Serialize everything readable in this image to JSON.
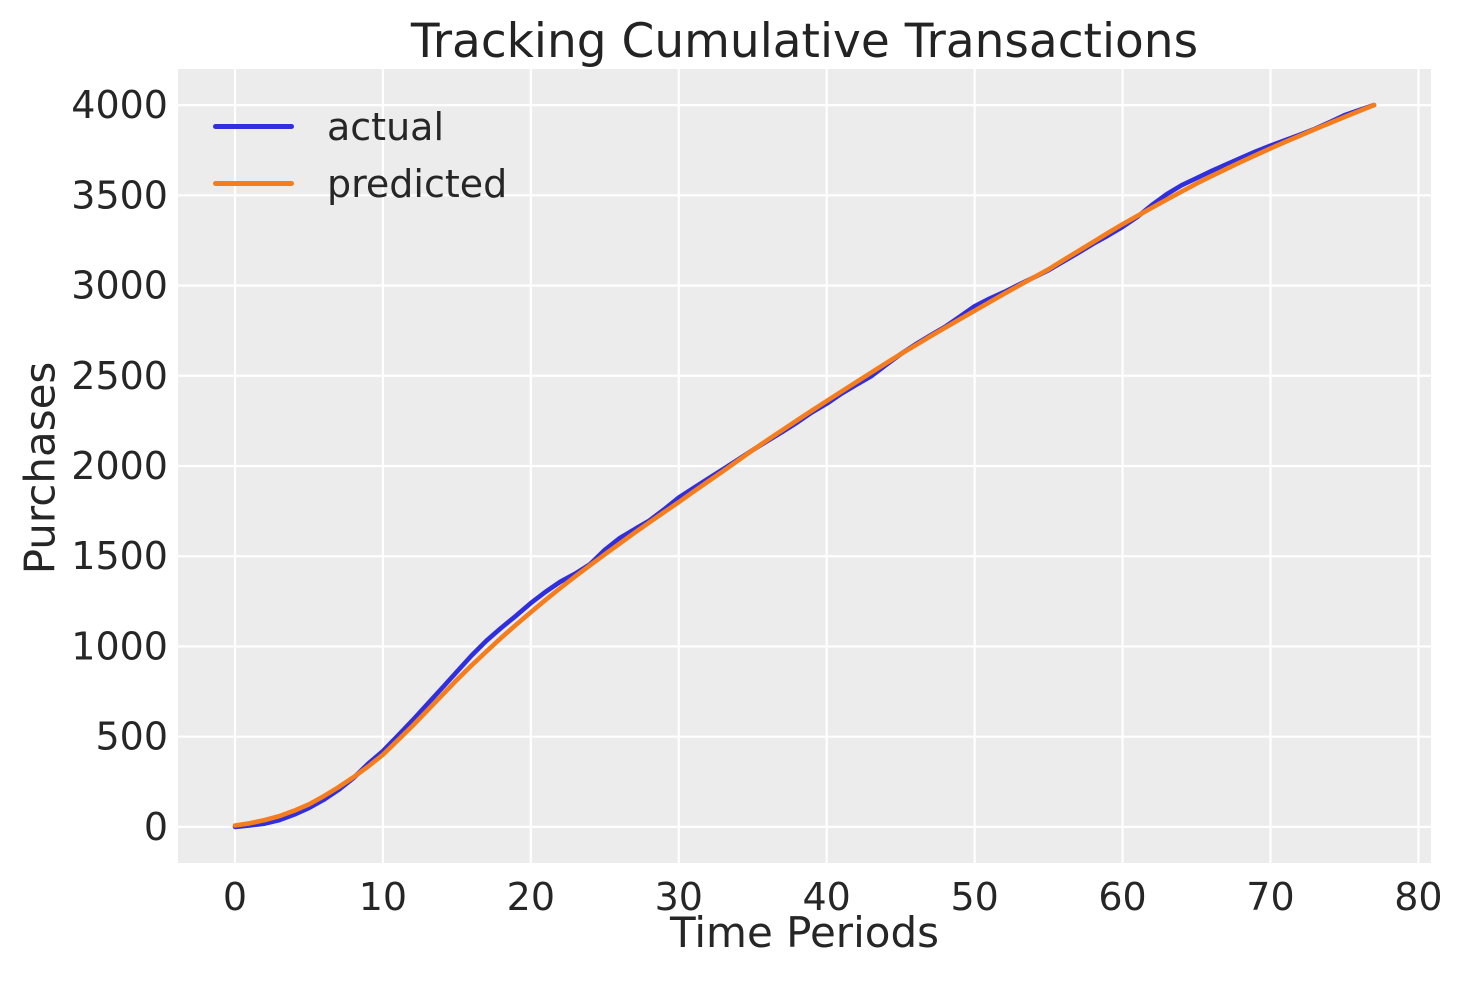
{
  "figure": {
    "title": "Tracking Cumulative Transactions",
    "xlabel": "Time Periods",
    "ylabel": "Purchases"
  },
  "legend": {
    "items": [
      {
        "label": "actual",
        "color": "#2f2fdf"
      },
      {
        "label": "predicted",
        "color": "#f67d1b"
      }
    ]
  },
  "colors": {
    "plot_background": "#ececec",
    "gridline": "#ffffff",
    "text": "#262626",
    "actual_line": "#2f2fdf",
    "predicted_line": "#f67d1b"
  },
  "chart_data": {
    "type": "line",
    "title": "Tracking Cumulative Transactions",
    "xlabel": "Time Periods",
    "ylabel": "Purchases",
    "grid": true,
    "legend_position": "upper left",
    "xlim": [
      -3.85,
      80.85
    ],
    "ylim": [
      -200,
      4200
    ],
    "xticks": [
      0,
      10,
      20,
      30,
      40,
      50,
      60,
      70,
      80
    ],
    "yticks": [
      0,
      500,
      1000,
      1500,
      2000,
      2500,
      3000,
      3500,
      4000
    ],
    "x": [
      0,
      1,
      2,
      3,
      4,
      5,
      6,
      7,
      8,
      9,
      10,
      11,
      12,
      13,
      14,
      15,
      16,
      17,
      18,
      19,
      20,
      21,
      22,
      23,
      24,
      25,
      26,
      27,
      28,
      29,
      30,
      31,
      32,
      33,
      34,
      35,
      36,
      37,
      38,
      39,
      40,
      41,
      42,
      43,
      44,
      45,
      46,
      47,
      48,
      49,
      50,
      51,
      52,
      53,
      54,
      55,
      56,
      57,
      58,
      59,
      60,
      61,
      62,
      63,
      64,
      65,
      66,
      67,
      68,
      69,
      70,
      71,
      72,
      73,
      74,
      75,
      76,
      77
    ],
    "series": [
      {
        "name": "actual",
        "color": "#2f2fdf",
        "values": [
          0,
          8,
          18,
          38,
          68,
          105,
          150,
          205,
          270,
          350,
          420,
          505,
          590,
          680,
          770,
          860,
          950,
          1032,
          1103,
          1170,
          1240,
          1303,
          1359,
          1403,
          1455,
          1535,
          1600,
          1649,
          1697,
          1759,
          1825,
          1878,
          1930,
          1982,
          2035,
          2088,
          2139,
          2189,
          2241,
          2297,
          2345,
          2401,
          2450,
          2497,
          2559,
          2620,
          2674,
          2723,
          2771,
          2828,
          2885,
          2927,
          2964,
          3005,
          3045,
          3085,
          3133,
          3181,
          3231,
          3276,
          3325,
          3381,
          3447,
          3507,
          3556,
          3595,
          3634,
          3671,
          3707,
          3743,
          3775,
          3806,
          3836,
          3868,
          3905,
          3944,
          3972,
          4000
        ]
      },
      {
        "name": "predicted",
        "color": "#f67d1b",
        "values": [
          8,
          20,
          38,
          60,
          90,
          125,
          170,
          220,
          275,
          335,
          400,
          480,
          560,
          645,
          730,
          815,
          895,
          972,
          1048,
          1120,
          1190,
          1258,
          1324,
          1388,
          1450,
          1510,
          1570,
          1629,
          1687,
          1744,
          1800,
          1858,
          1915,
          1972,
          2030,
          2088,
          2144,
          2199,
          2253,
          2307,
          2360,
          2413,
          2465,
          2517,
          2569,
          2620,
          2669,
          2718,
          2766,
          2813,
          2860,
          2907,
          2954,
          3000,
          3045,
          3090,
          3141,
          3191,
          3241,
          3291,
          3340,
          3386,
          3432,
          3477,
          3521,
          3565,
          3606,
          3646,
          3685,
          3723,
          3760,
          3796,
          3831,
          3866,
          3900,
          3934,
          3967,
          4000
        ]
      }
    ]
  }
}
